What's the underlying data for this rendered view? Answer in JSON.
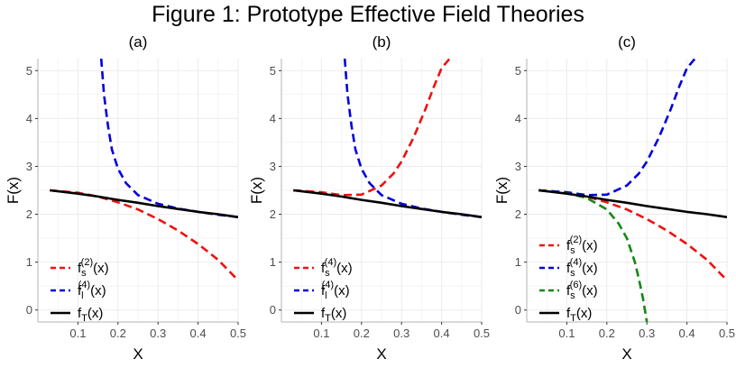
{
  "figure_title": "Figure 1: Prototype Effective Field Theories",
  "colors": {
    "red": "#ee1111",
    "blue": "#0000dd",
    "green": "#118811",
    "black": "#000000",
    "grid": "#ebebeb",
    "axis": "#b3b3b3"
  },
  "chart_data": [
    {
      "type": "line",
      "title": "(a)",
      "xlabel": "X",
      "ylabel": "F(x)",
      "xlim": [
        0.0,
        0.5
      ],
      "ylim": [
        -0.25,
        5.25
      ],
      "xticks": [
        0.1,
        0.2,
        0.3,
        0.4,
        0.5
      ],
      "yticks": [
        0,
        1,
        2,
        3,
        4,
        5
      ],
      "grid": true,
      "legend_position": "bottom-left",
      "series": [
        {
          "key": "red",
          "color": "#ee1111",
          "dash": true,
          "label_base": "f",
          "label_sub": "s",
          "label_sup": "(2)",
          "label_tail": "(x)",
          "x": [
            0.03,
            0.1,
            0.15,
            0.2,
            0.25,
            0.3,
            0.35,
            0.4,
            0.45,
            0.5
          ],
          "y": [
            2.5,
            2.45,
            2.37,
            2.25,
            2.1,
            1.9,
            1.66,
            1.38,
            1.05,
            0.62
          ]
        },
        {
          "key": "blue",
          "color": "#0000dd",
          "dash": true,
          "label_base": "f",
          "label_sub": "l",
          "label_sup": "(4)",
          "label_tail": "(x)",
          "x": [
            0.158,
            0.165,
            0.175,
            0.185,
            0.2,
            0.22,
            0.25,
            0.3,
            0.35,
            0.4,
            0.45,
            0.5
          ],
          "y": [
            5.25,
            4.5,
            3.85,
            3.35,
            2.95,
            2.65,
            2.4,
            2.22,
            2.12,
            2.05,
            1.99,
            1.94
          ]
        },
        {
          "key": "black",
          "color": "#000000",
          "dash": false,
          "label_base": "f",
          "label_sub": "T",
          "label_sup": "",
          "label_tail": "(x)",
          "x": [
            0.03,
            0.1,
            0.15,
            0.2,
            0.25,
            0.3,
            0.35,
            0.4,
            0.45,
            0.5
          ],
          "y": [
            2.5,
            2.43,
            2.37,
            2.3,
            2.24,
            2.17,
            2.11,
            2.05,
            2.0,
            1.94
          ]
        }
      ]
    },
    {
      "type": "line",
      "title": "(b)",
      "xlabel": "X",
      "ylabel": "F(x)",
      "xlim": [
        0.0,
        0.5
      ],
      "ylim": [
        -0.25,
        5.25
      ],
      "xticks": [
        0.1,
        0.2,
        0.3,
        0.4,
        0.5
      ],
      "yticks": [
        0,
        1,
        2,
        3,
        4,
        5
      ],
      "grid": true,
      "legend_position": "bottom-left",
      "series": [
        {
          "key": "red",
          "color": "#ee1111",
          "dash": true,
          "label_base": "f",
          "label_sub": "s",
          "label_sup": "(4)",
          "label_tail": "(x)",
          "x": [
            0.03,
            0.1,
            0.15,
            0.2,
            0.25,
            0.28,
            0.3,
            0.33,
            0.36,
            0.38,
            0.4,
            0.42
          ],
          "y": [
            2.5,
            2.46,
            2.4,
            2.41,
            2.6,
            2.85,
            3.1,
            3.6,
            4.2,
            4.65,
            5.05,
            5.25
          ]
        },
        {
          "key": "blue",
          "color": "#0000dd",
          "dash": true,
          "label_base": "f",
          "label_sub": "l",
          "label_sup": "(4)",
          "label_tail": "(x)",
          "x": [
            0.158,
            0.165,
            0.175,
            0.185,
            0.2,
            0.22,
            0.25,
            0.3,
            0.35,
            0.4,
            0.45,
            0.5
          ],
          "y": [
            5.25,
            4.5,
            3.85,
            3.35,
            2.95,
            2.65,
            2.4,
            2.22,
            2.12,
            2.05,
            1.99,
            1.94
          ]
        },
        {
          "key": "black",
          "color": "#000000",
          "dash": false,
          "label_base": "f",
          "label_sub": "T",
          "label_sup": "",
          "label_tail": "(x)",
          "x": [
            0.03,
            0.1,
            0.15,
            0.2,
            0.25,
            0.3,
            0.35,
            0.4,
            0.45,
            0.5
          ],
          "y": [
            2.5,
            2.43,
            2.37,
            2.3,
            2.24,
            2.17,
            2.11,
            2.05,
            2.0,
            1.94
          ]
        }
      ]
    },
    {
      "type": "line",
      "title": "(c)",
      "xlabel": "X",
      "ylabel": "F(x)",
      "xlim": [
        0.0,
        0.5
      ],
      "ylim": [
        -0.25,
        5.25
      ],
      "xticks": [
        0.1,
        0.2,
        0.3,
        0.4,
        0.5
      ],
      "yticks": [
        0,
        1,
        2,
        3,
        4,
        5
      ],
      "grid": true,
      "legend_position": "bottom-left",
      "series": [
        {
          "key": "red",
          "color": "#ee1111",
          "dash": true,
          "label_base": "f",
          "label_sub": "s",
          "label_sup": "(2)",
          "label_tail": "(x)",
          "x": [
            0.03,
            0.1,
            0.15,
            0.2,
            0.25,
            0.3,
            0.35,
            0.4,
            0.45,
            0.5
          ],
          "y": [
            2.5,
            2.45,
            2.37,
            2.25,
            2.1,
            1.9,
            1.66,
            1.38,
            1.05,
            0.62
          ]
        },
        {
          "key": "blue",
          "color": "#0000dd",
          "dash": true,
          "label_base": "f",
          "label_sub": "s",
          "label_sup": "(4)",
          "label_tail": "(x)",
          "x": [
            0.03,
            0.1,
            0.15,
            0.2,
            0.25,
            0.28,
            0.3,
            0.33,
            0.36,
            0.38,
            0.4,
            0.42
          ],
          "y": [
            2.5,
            2.46,
            2.4,
            2.41,
            2.6,
            2.85,
            3.1,
            3.6,
            4.2,
            4.65,
            5.05,
            5.25
          ]
        },
        {
          "key": "green",
          "color": "#118811",
          "dash": true,
          "label_base": "f",
          "label_sub": "s",
          "label_sup": "(6)",
          "label_tail": "(x)",
          "x": [
            0.03,
            0.1,
            0.15,
            0.2,
            0.23,
            0.25,
            0.27,
            0.28,
            0.29,
            0.3
          ],
          "y": [
            2.5,
            2.44,
            2.34,
            2.1,
            1.8,
            1.5,
            1.0,
            0.65,
            0.25,
            -0.25
          ]
        },
        {
          "key": "black",
          "color": "#000000",
          "dash": false,
          "label_base": "f",
          "label_sub": "T",
          "label_sup": "",
          "label_tail": "(x)",
          "x": [
            0.03,
            0.1,
            0.15,
            0.2,
            0.25,
            0.3,
            0.35,
            0.4,
            0.45,
            0.5
          ],
          "y": [
            2.5,
            2.43,
            2.37,
            2.3,
            2.24,
            2.17,
            2.11,
            2.05,
            2.0,
            1.94
          ]
        }
      ]
    }
  ]
}
